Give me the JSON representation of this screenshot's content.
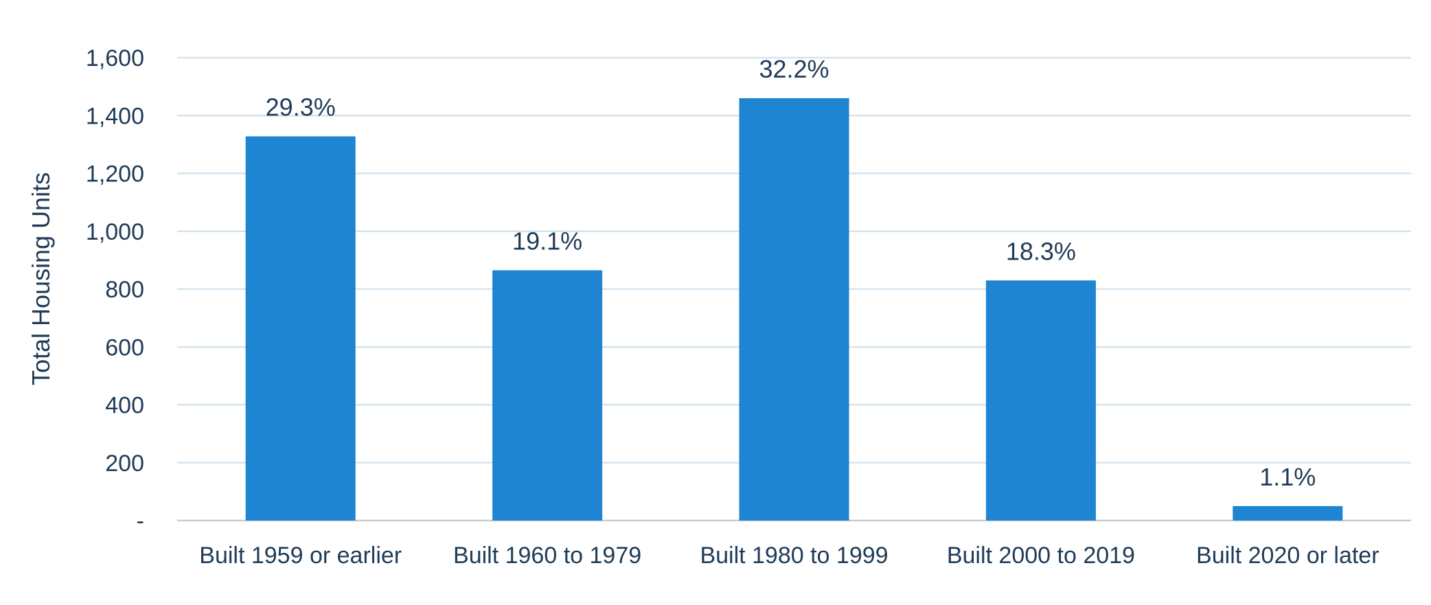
{
  "chart_data": {
    "type": "bar",
    "categories": [
      "Built 1959 or earlier",
      "Built 1960 to 1979",
      "Built 1980 to 1999",
      "Built 2000 to 2019",
      "Built 2020 or later"
    ],
    "values": [
      1328,
      865,
      1460,
      830,
      50
    ],
    "data_labels": [
      "29.3%",
      "19.1%",
      "32.2%",
      "18.3%",
      "1.1%"
    ],
    "title": "",
    "xlabel": "",
    "ylabel": "Total Housing Units",
    "ylim": [
      0,
      1600
    ],
    "yticks": [
      0,
      200,
      400,
      600,
      800,
      1000,
      1200,
      1400,
      1600
    ],
    "ytick_labels": [
      "-",
      "200",
      "400",
      "600",
      "800",
      "1,000",
      "1,200",
      "1,400",
      "1,600"
    ],
    "grid": true,
    "legend": "none",
    "colors": {
      "bar": "#1f84d1",
      "text": "#1f3b57",
      "grid": "#d4e4ef",
      "baseline": "#c9ccd0"
    }
  }
}
